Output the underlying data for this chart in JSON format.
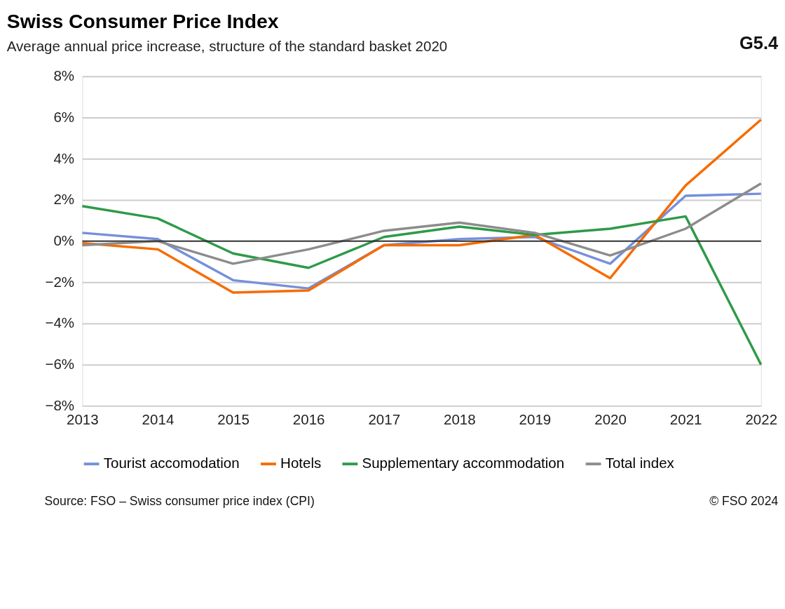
{
  "chart_data": {
    "type": "line",
    "title": "Swiss Consumer Price Index",
    "subtitle": "Average annual price increase, structure of the standard basket 2020",
    "categories": [
      "2013",
      "2014",
      "2015",
      "2016",
      "2017",
      "2018",
      "2019",
      "2020",
      "2021",
      "2022"
    ],
    "series": [
      {
        "name": "Tourist accomodation",
        "color": "#7590db",
        "values": [
          0.4,
          0.1,
          -1.9,
          -2.3,
          -0.2,
          0.1,
          0.2,
          -1.1,
          2.2,
          2.3
        ]
      },
      {
        "name": "Hotels",
        "color": "#f76b00",
        "values": [
          -0.1,
          -0.4,
          -2.5,
          -2.4,
          -0.2,
          -0.2,
          0.3,
          -1.8,
          2.7,
          5.9
        ]
      },
      {
        "name": "Supplementary accommodation",
        "color": "#2e9a48",
        "values": [
          1.7,
          1.1,
          -0.6,
          -1.3,
          0.2,
          0.7,
          0.3,
          0.6,
          1.2,
          -6.0
        ]
      },
      {
        "name": "Total index",
        "color": "#8c8c8c",
        "values": [
          -0.2,
          0.0,
          -1.1,
          -0.4,
          0.5,
          0.9,
          0.4,
          -0.7,
          0.6,
          2.8
        ]
      }
    ],
    "ylim": [
      -8,
      8
    ],
    "yticks": [
      {
        "value": -8,
        "label": "−8%"
      },
      {
        "value": -6,
        "label": "−6%"
      },
      {
        "value": -4,
        "label": "−4%"
      },
      {
        "value": -2,
        "label": "−2%"
      },
      {
        "value": 0,
        "label": "0%"
      },
      {
        "value": 2,
        "label": "2%"
      },
      {
        "value": 4,
        "label": "4%"
      },
      {
        "value": 6,
        "label": "6%"
      },
      {
        "value": 8,
        "label": "8%"
      }
    ],
    "grid": "y",
    "legend": "bottom",
    "line_style": "solid",
    "ref_lines": [
      {
        "axis": "y",
        "value": 0,
        "color": "#222222"
      }
    ],
    "annotations": [
      "G5.4",
      "Source: FSO – Swiss consumer price index (CPI)",
      "© FSO 2024"
    ]
  }
}
